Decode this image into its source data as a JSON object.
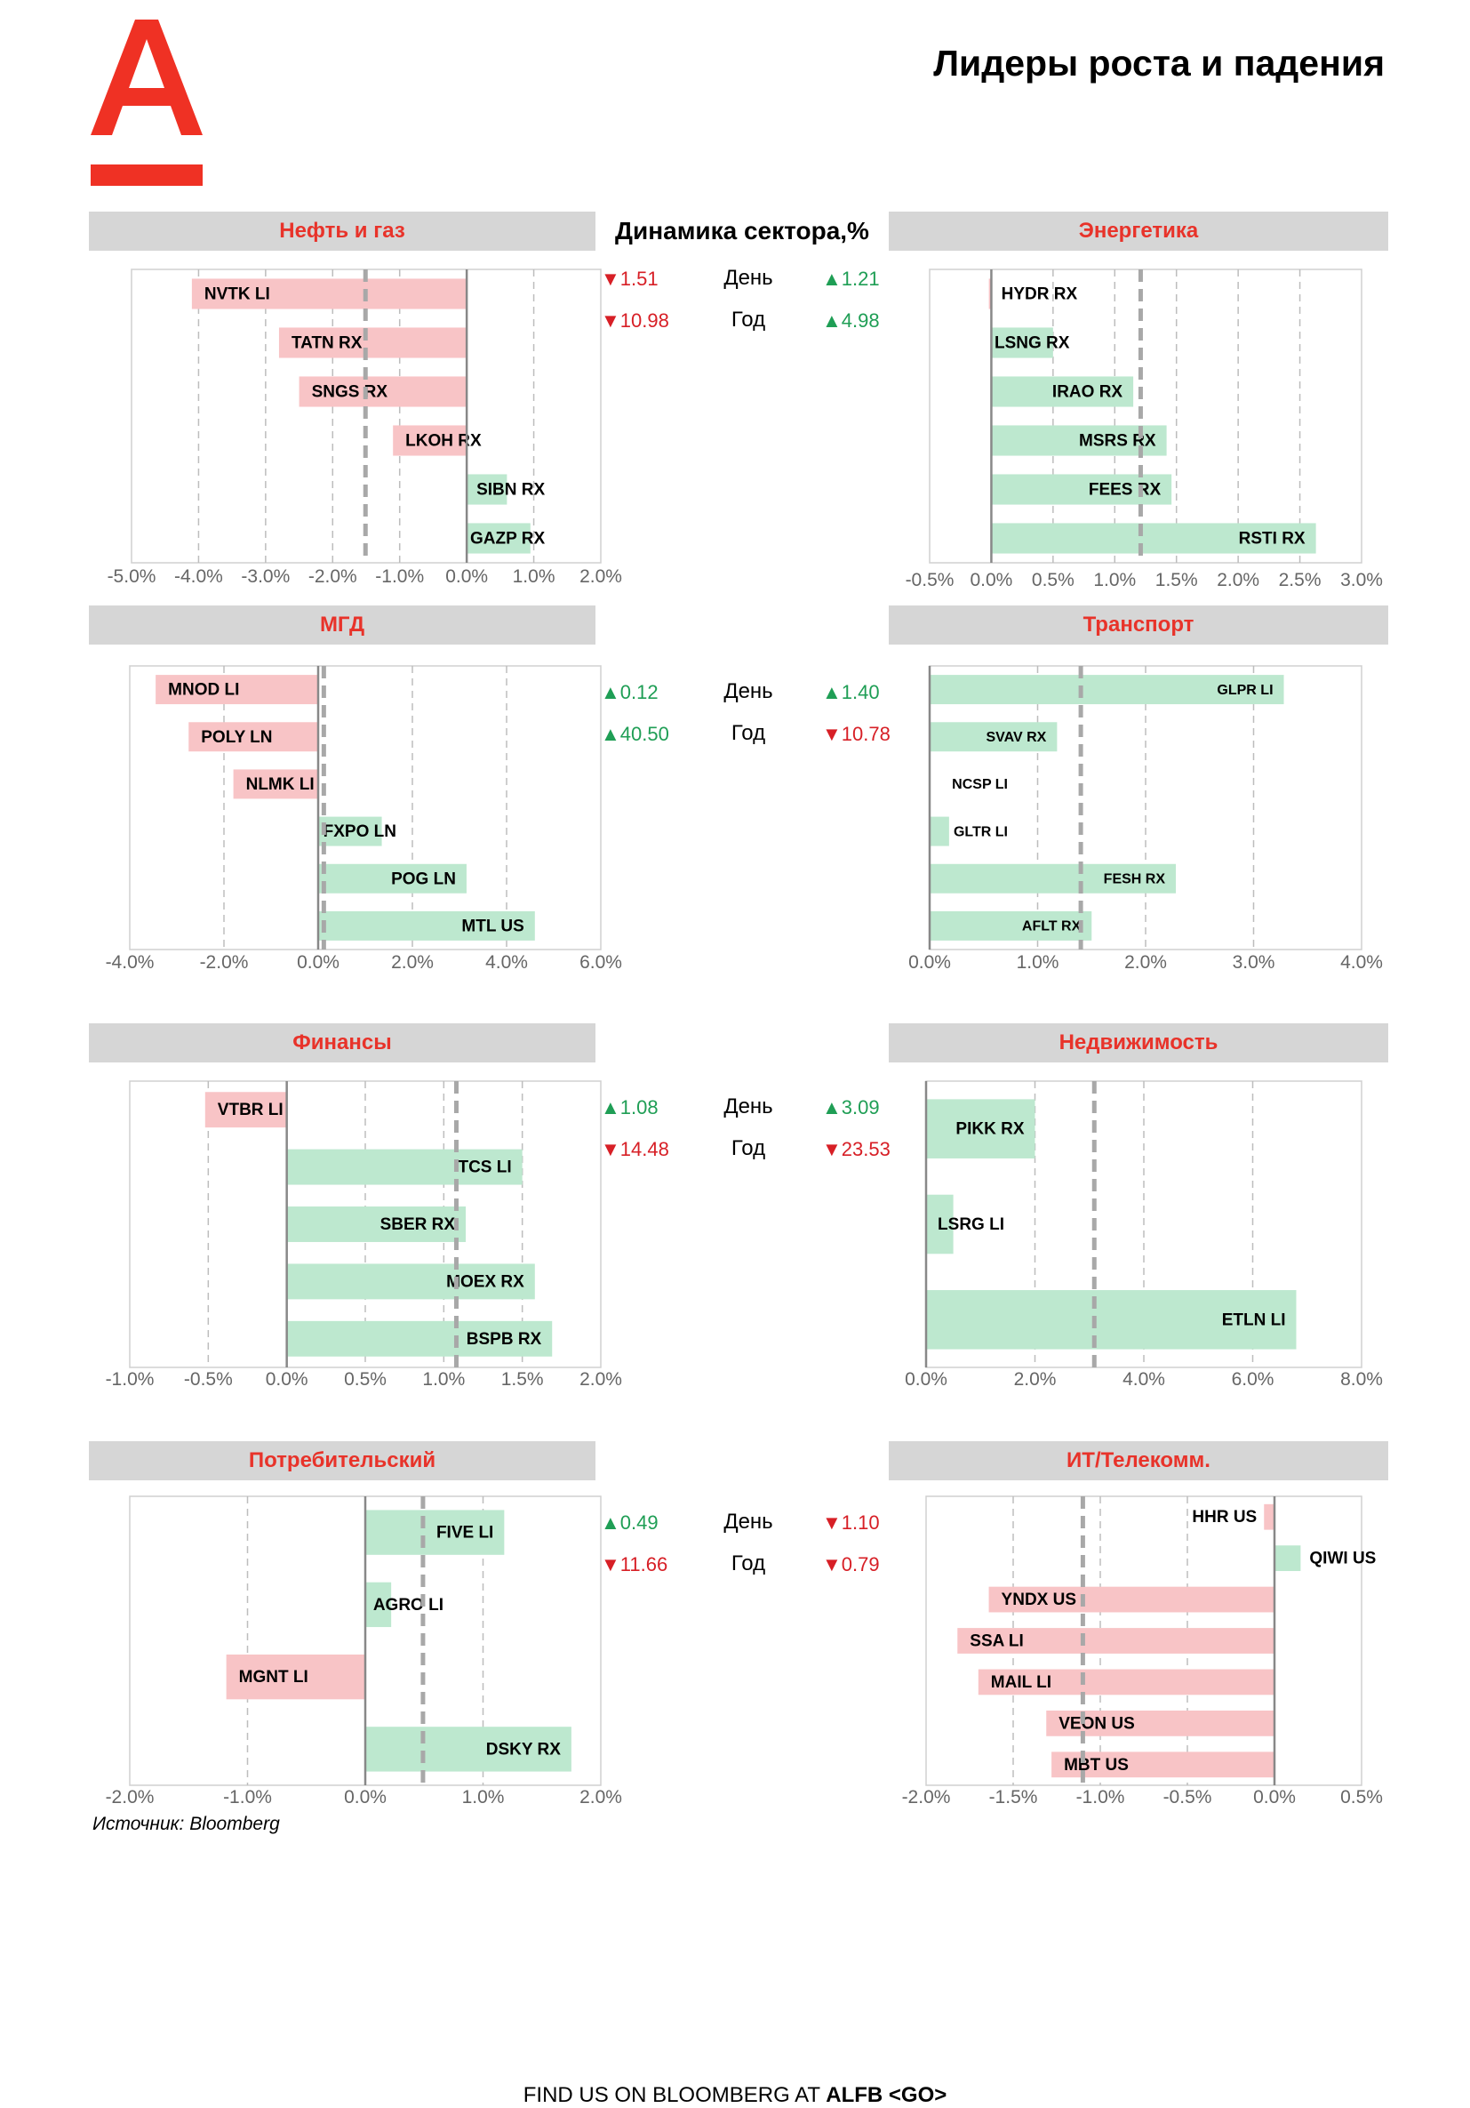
{
  "page_title": "Лидеры роста и падения",
  "dynamics_title": "Динамика сектора,%",
  "source": "Источник: Bloomberg",
  "footer": {
    "prefix": "FIND US ON BLOOMBERG AT ",
    "ticker": "ALFB <GO>"
  },
  "colors": {
    "brand_red": "#EF3124",
    "gain_bar": "#BDE8CF",
    "loss_bar": "#F8C4C6",
    "up_text": "#1F9E55",
    "down_text": "#D71F26",
    "header_bg": "#D6D6D6"
  },
  "sections": [
    {
      "left": "Нефть и газ",
      "right": "Энергетика",
      "stats": [
        {
          "period": "День",
          "left": "1.51",
          "left_dir": "down",
          "right": "1.21",
          "right_dir": "up"
        },
        {
          "period": "Год",
          "left": "10.98",
          "left_dir": "down",
          "right": "4.98",
          "right_dir": "up"
        }
      ]
    },
    {
      "left": "МГД",
      "right": "Транспорт",
      "stats": [
        {
          "period": "День",
          "left": "0.12",
          "left_dir": "up",
          "right": "1.40",
          "right_dir": "up"
        },
        {
          "period": "Год",
          "left": "40.50",
          "left_dir": "up",
          "right": "10.78",
          "right_dir": "down"
        }
      ]
    },
    {
      "left": "Финансы",
      "right": "Недвижимость",
      "stats": [
        {
          "period": "День",
          "left": "1.08",
          "left_dir": "up",
          "right": "3.09",
          "right_dir": "up"
        },
        {
          "period": "Год",
          "left": "14.48",
          "left_dir": "down",
          "right": "23.53",
          "right_dir": "down"
        }
      ]
    },
    {
      "left": "Потребительский",
      "right": "ИТ/Телекомм.",
      "stats": [
        {
          "period": "День",
          "left": "0.49",
          "left_dir": "up",
          "right": "1.10",
          "right_dir": "down"
        },
        {
          "period": "Год",
          "left": "11.66",
          "left_dir": "down",
          "right": "0.79",
          "right_dir": "down"
        }
      ]
    }
  ],
  "chart_data": [
    {
      "type": "bar",
      "orientation": "horizontal",
      "sector": "Нефть и газ",
      "xlim": [
        -5,
        2
      ],
      "ticks": [
        -5,
        -4,
        -3,
        -2,
        -1,
        0,
        1,
        2
      ],
      "tick_decimals": 1,
      "reference": -1.51,
      "label_size": 19,
      "label_side": "end",
      "categories": [
        "NVTK LI",
        "TATN RX",
        "SNGS RX",
        "LKOH RX",
        "SIBN RX",
        "GAZP RX"
      ],
      "values": [
        -4.1,
        -2.8,
        -2.5,
        -1.1,
        0.6,
        0.95
      ]
    },
    {
      "type": "bar",
      "orientation": "horizontal",
      "sector": "Энергетика",
      "xlim": [
        -0.5,
        3
      ],
      "ticks": [
        -0.5,
        0,
        0.5,
        1,
        1.5,
        2,
        2.5,
        3
      ],
      "tick_decimals": 1,
      "reference": 1.21,
      "label_size": 19,
      "label_side": "end",
      "categories": [
        "HYDR RX",
        "LSNG RX",
        "IRAO RX",
        "MSRS RX",
        "FEES RX",
        "RSTI RX"
      ],
      "values": [
        -0.02,
        0.5,
        1.15,
        1.42,
        1.46,
        2.63
      ]
    },
    {
      "type": "bar",
      "orientation": "horizontal",
      "sector": "МГД",
      "xlim": [
        -4,
        6
      ],
      "ticks": [
        -4,
        -2,
        0,
        2,
        4,
        6
      ],
      "tick_decimals": 1,
      "reference": 0.12,
      "label_size": 19,
      "label_side": "end",
      "categories": [
        "MNOD LI",
        "POLY LN",
        "NLMK LI",
        "FXPO LN",
        "POG LN",
        "MTL US"
      ],
      "values": [
        -3.45,
        -2.75,
        -1.8,
        1.35,
        3.15,
        4.6
      ]
    },
    {
      "type": "bar",
      "orientation": "horizontal",
      "sector": "Транспорт",
      "xlim": [
        0,
        4
      ],
      "ticks": [
        0,
        1,
        2,
        3,
        4
      ],
      "tick_decimals": 1,
      "reference": 1.4,
      "label_size": 16,
      "label_side": "end",
      "categories": [
        "GLPR LI",
        "SVAV RX",
        "NCSP LI",
        "GLTR LI",
        "FESH RX",
        "AFLT RX"
      ],
      "values": [
        3.28,
        1.18,
        0,
        0.18,
        2.28,
        1.5
      ]
    },
    {
      "type": "bar",
      "orientation": "horizontal",
      "sector": "Финансы",
      "xlim": [
        -1,
        2
      ],
      "ticks": [
        -1,
        -0.5,
        0,
        0.5,
        1,
        1.5,
        2
      ],
      "tick_decimals": 1,
      "reference": 1.08,
      "label_size": 19,
      "label_side": "end",
      "categories": [
        "VTBR LI",
        "TCS LI",
        "SBER RX",
        "MOEX RX",
        "BSPB RX"
      ],
      "values": [
        -0.52,
        1.5,
        1.14,
        1.58,
        1.69
      ]
    },
    {
      "type": "bar",
      "orientation": "horizontal",
      "sector": "Недвижимость",
      "xlim": [
        0,
        8
      ],
      "ticks": [
        0,
        2,
        4,
        6,
        8
      ],
      "tick_decimals": 1,
      "reference": 3.09,
      "label_size": 19,
      "label_side": "end",
      "categories": [
        "PIKK RX",
        "LSRG LI",
        "ETLN LI"
      ],
      "values": [
        2,
        0.5,
        6.8
      ]
    },
    {
      "type": "bar",
      "orientation": "horizontal",
      "sector": "Потребительский",
      "xlim": [
        -2,
        2
      ],
      "ticks": [
        -2,
        -1,
        0,
        1,
        2
      ],
      "tick_decimals": 1,
      "reference": 0.49,
      "label_size": 19,
      "label_side": "end",
      "categories": [
        "FIVE LI",
        "AGRO LI",
        "MGNT LI",
        "DSKY RX"
      ],
      "values": [
        1.18,
        0.22,
        -1.18,
        1.75
      ]
    },
    {
      "type": "bar",
      "orientation": "horizontal",
      "sector": "ИТ/Телекомм.",
      "xlim": [
        -2,
        0.5
      ],
      "ticks": [
        -2,
        -1.5,
        -1,
        -0.5,
        0,
        0.5
      ],
      "tick_decimals": 1,
      "reference": -1.1,
      "label_size": 19,
      "label_side": "after",
      "categories": [
        "HHR US",
        "QIWI US",
        "YNDX US",
        "SSA LI",
        "MAIL LI",
        "VEON US",
        "MBT US"
      ],
      "values": [
        -0.06,
        0.15,
        -1.64,
        -1.82,
        -1.7,
        -1.31,
        -1.28
      ]
    }
  ]
}
